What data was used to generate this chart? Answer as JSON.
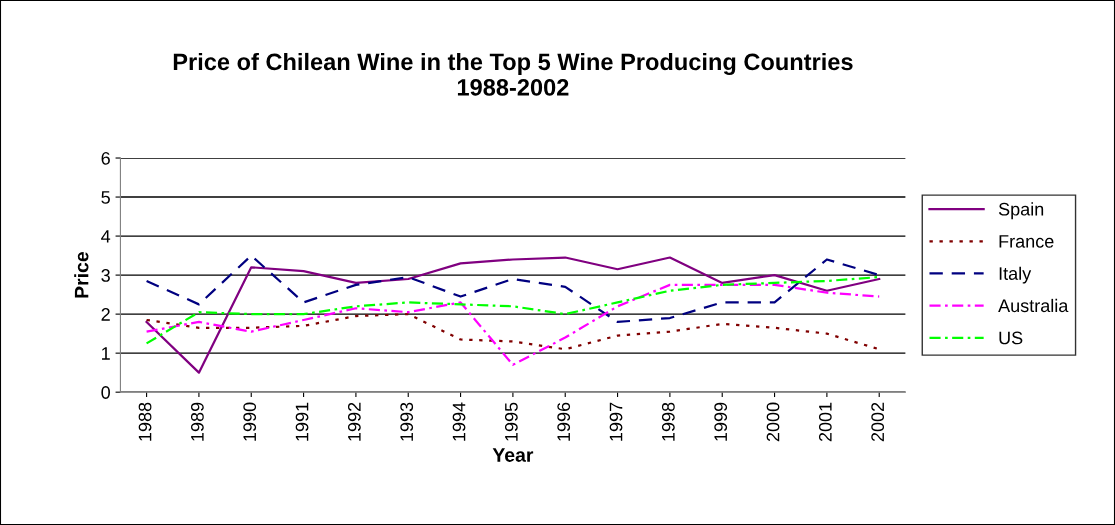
{
  "chart_data": {
    "type": "line",
    "title": "Price of Chilean Wine in the Top 5 Wine Producing Countries\n1988-2002",
    "xlabel": "Year",
    "ylabel": "Price",
    "categories": [
      "1988",
      "1989",
      "1990",
      "1991",
      "1992",
      "1993",
      "1994",
      "1995",
      "1996",
      "1997",
      "1998",
      "1999",
      "2000",
      "2001",
      "2002"
    ],
    "series": [
      {
        "name": "Spain",
        "color": "#800080",
        "line_style": "solid",
        "values": [
          1.8,
          0.5,
          3.2,
          3.1,
          2.8,
          2.9,
          3.3,
          3.4,
          3.45,
          3.15,
          3.45,
          2.8,
          3.0,
          2.6,
          2.9
        ]
      },
      {
        "name": "France",
        "color": "#800000",
        "line_style": "dotted",
        "values": [
          1.85,
          1.65,
          1.65,
          1.7,
          1.95,
          2.0,
          1.35,
          1.3,
          1.1,
          1.45,
          1.55,
          1.75,
          1.65,
          1.5,
          1.1
        ]
      },
      {
        "name": "Italy",
        "color": "#000080",
        "line_style": "dashed",
        "values": [
          2.85,
          2.25,
          3.5,
          2.3,
          2.75,
          2.95,
          2.45,
          2.9,
          2.7,
          1.8,
          1.9,
          2.3,
          2.3,
          3.4,
          3.0
        ]
      },
      {
        "name": "Australia",
        "color": "#ff00ff",
        "line_style": "dashdot",
        "values": [
          1.55,
          1.8,
          1.55,
          1.85,
          2.15,
          2.05,
          2.3,
          0.7,
          1.4,
          2.2,
          2.75,
          2.75,
          2.75,
          2.55,
          2.45
        ]
      },
      {
        "name": "US",
        "color": "#00ff00",
        "line_style": "dashdot",
        "values": [
          1.25,
          2.05,
          2.0,
          2.0,
          2.2,
          2.3,
          2.25,
          2.2,
          2.0,
          2.3,
          2.6,
          2.75,
          2.8,
          2.85,
          2.95
        ]
      }
    ],
    "ylim": [
      0,
      6
    ],
    "yticks": [
      0,
      1,
      2,
      3,
      4,
      5,
      6
    ],
    "grid": "y",
    "legend": "right",
    "marker": "none"
  }
}
